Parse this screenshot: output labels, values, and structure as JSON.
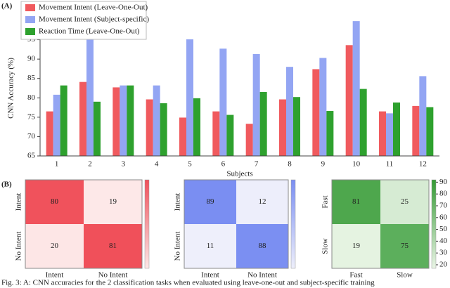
{
  "caption": "Fig. 3: A: CNN accuracies for the 2 classification tasks when evaluated using leave-one-out and subject-specific training",
  "chart_data": [
    {
      "type": "bar",
      "panel_label": "(A)",
      "ylabel": "CNN Accuracy (%)",
      "xlabel": "Subjects",
      "categories": [
        "1",
        "2",
        "3",
        "4",
        "5",
        "6",
        "7",
        "8",
        "9",
        "10",
        "11",
        "12"
      ],
      "series": [
        {
          "name": "Movement Intent (Leave-One-Out)",
          "color": "#f05a5e",
          "values": [
            76.5,
            84.1,
            82.7,
            79.6,
            74.9,
            76.5,
            73.3,
            79.6,
            87.4,
            93.6,
            76.5,
            77.9
          ]
        },
        {
          "name": "Movement Intent (Subject-specific)",
          "color": "#93a5f3",
          "values": [
            80.8,
            95.0,
            83.2,
            83.2,
            95.1,
            92.7,
            91.3,
            88.0,
            90.3,
            99.8,
            76.0,
            85.6
          ]
        },
        {
          "name": "Reaction Time (Leave-One-Out)",
          "color": "#2ea12e",
          "values": [
            83.2,
            79.0,
            83.2,
            78.6,
            79.9,
            75.6,
            81.5,
            80.2,
            76.6,
            82.3,
            78.8,
            77.6
          ]
        }
      ],
      "ylim": [
        65,
        100
      ],
      "yticks": [
        65,
        70,
        75,
        80,
        85,
        90,
        95,
        100
      ]
    },
    {
      "type": "heatmap",
      "panel_label": "(B)",
      "x_categories": [
        "Intent",
        "No Intent"
      ],
      "y_categories": [
        "Intent",
        "No Intent"
      ],
      "values": [
        [
          80,
          19
        ],
        [
          20,
          81
        ]
      ],
      "colors": [
        "#fde8e8",
        "#f0505a"
      ],
      "clim": [
        19,
        81
      ]
    },
    {
      "type": "heatmap",
      "x_categories": [
        "Intent",
        "No Intent"
      ],
      "y_categories": [
        "Intent",
        "No Intent"
      ],
      "values": [
        [
          89,
          12
        ],
        [
          11,
          88
        ]
      ],
      "colors": [
        "#eeeffb",
        "#7a8ef2"
      ],
      "clim": [
        11,
        89
      ]
    },
    {
      "type": "heatmap",
      "x_categories": [
        "Fast",
        "Slow"
      ],
      "y_categories": [
        "Fast",
        "Slow"
      ],
      "values": [
        [
          81,
          25
        ],
        [
          19,
          75
        ]
      ],
      "colors": [
        "#eaf5e6",
        "#339a33"
      ],
      "clim": [
        17,
        92
      ],
      "cticks": [
        20,
        30,
        40,
        50,
        60,
        70,
        80,
        90
      ]
    }
  ]
}
